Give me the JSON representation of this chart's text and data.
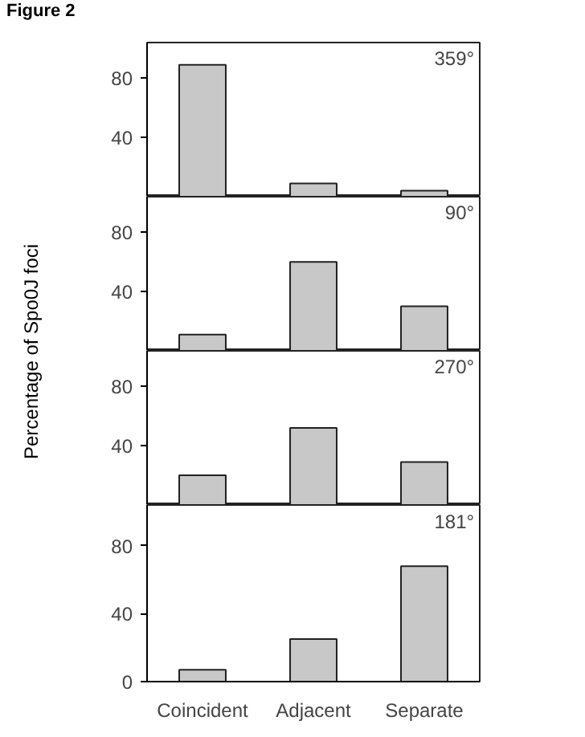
{
  "chart_data": [
    {
      "type": "bar",
      "title": "359°",
      "annotations": [
        "Figure 2"
      ],
      "categories": [
        null,
        null,
        null
      ],
      "values": [
        89,
        9,
        4
      ],
      "color": "#c8c8c8",
      "ylim": [
        0,
        104
      ],
      "yticks": [
        40,
        80
      ],
      "tick_labels": "y",
      "grid": false
    },
    {
      "type": "bar",
      "title": "90°",
      "ylabel": "Percentage of Spo0J foci",
      "categories": [
        null,
        null,
        null
      ],
      "values": [
        11,
        60,
        30
      ],
      "color": "#c8c8c8",
      "ylim": [
        0,
        104
      ],
      "yticks": [
        40,
        80
      ],
      "tick_labels": "y",
      "grid": false
    },
    {
      "type": "bar",
      "title": "270°",
      "categories": [
        null,
        null,
        null
      ],
      "values": [
        20,
        52,
        29
      ],
      "color": "#c8c8c8",
      "ylim": [
        0,
        104
      ],
      "yticks": [
        40,
        80
      ],
      "tick_labels": "y",
      "grid": false
    },
    {
      "type": "bar",
      "title": "181°",
      "categories": [
        "Coincident",
        "Adjacent",
        "Separate"
      ],
      "values": [
        7,
        25,
        68
      ],
      "color": "#c8c8c8",
      "ylim": [
        0,
        104
      ],
      "yticks": [
        0,
        40,
        80
      ],
      "grid": false
    }
  ]
}
